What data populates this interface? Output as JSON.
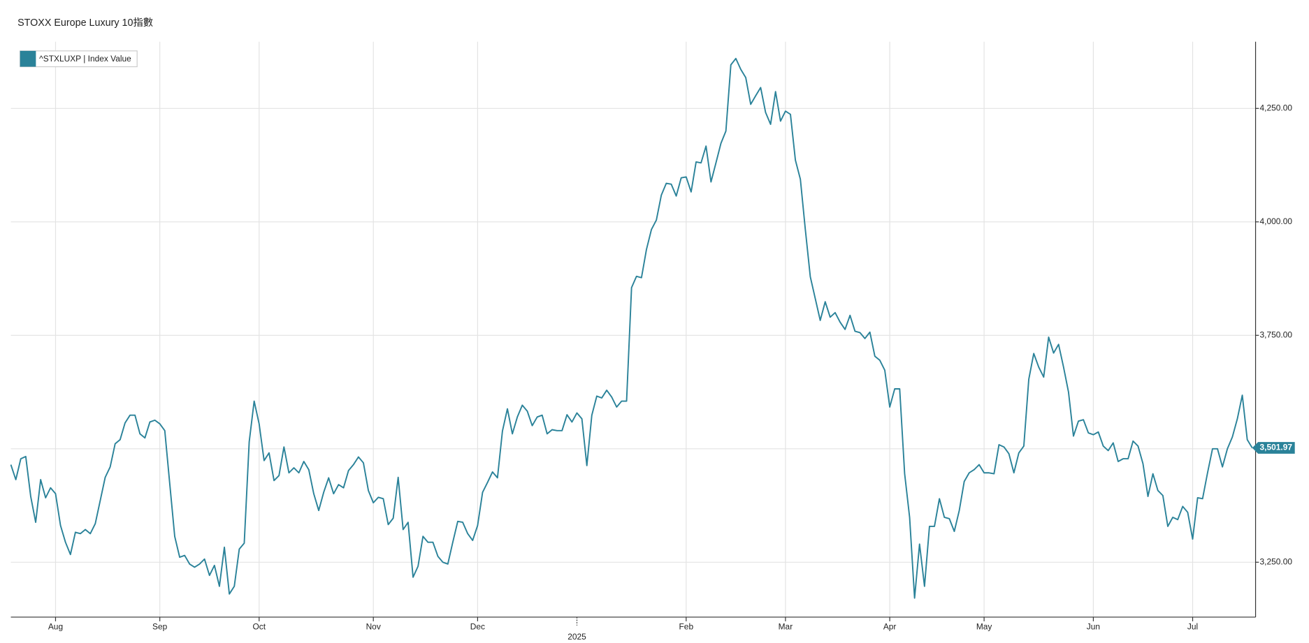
{
  "chart_data": {
    "type": "line",
    "title": "STOXX Europe Luxury 10指數",
    "legend": "top-left",
    "grid": true,
    "y_axis_side": "right",
    "ylim": [
      3129,
      4397
    ],
    "yticks": [
      {
        "value": 3250,
        "label": "3,250.00"
      },
      {
        "value": 3500,
        "label": "3,500.00"
      },
      {
        "value": 3750,
        "label": "3,750.00"
      },
      {
        "value": 4000,
        "label": "4,000.00"
      },
      {
        "value": 4250,
        "label": "4,250.00"
      }
    ],
    "categories": [
      null,
      null,
      null,
      null,
      null,
      null,
      null,
      null,
      null,
      "Aug",
      null,
      null,
      null,
      null,
      null,
      null,
      null,
      null,
      null,
      null,
      null,
      null,
      null,
      null,
      null,
      null,
      null,
      null,
      null,
      null,
      "Sep",
      null,
      null,
      null,
      null,
      null,
      null,
      null,
      null,
      null,
      null,
      null,
      null,
      null,
      null,
      null,
      null,
      null,
      null,
      null,
      "Oct",
      null,
      null,
      null,
      null,
      null,
      null,
      null,
      null,
      null,
      null,
      null,
      null,
      null,
      null,
      null,
      null,
      null,
      null,
      null,
      null,
      null,
      null,
      "Nov",
      null,
      null,
      null,
      null,
      null,
      null,
      null,
      null,
      null,
      null,
      null,
      null,
      null,
      null,
      null,
      null,
      null,
      null,
      null,
      null,
      "Dec",
      null,
      null,
      null,
      null,
      null,
      null,
      null,
      null,
      null,
      null,
      null,
      null,
      null,
      null,
      null,
      null,
      null,
      null,
      null,
      "2025",
      null,
      null,
      null,
      null,
      null,
      null,
      null,
      null,
      null,
      null,
      null,
      null,
      null,
      null,
      null,
      null,
      null,
      null,
      null,
      null,
      null,
      "Feb",
      null,
      null,
      null,
      null,
      null,
      null,
      null,
      null,
      null,
      null,
      null,
      null,
      null,
      null,
      null,
      null,
      null,
      null,
      null,
      "Mar",
      null,
      null,
      null,
      null,
      null,
      null,
      null,
      null,
      null,
      null,
      null,
      null,
      null,
      null,
      null,
      null,
      null,
      null,
      null,
      null,
      "Apr",
      null,
      null,
      null,
      null,
      null,
      null,
      null,
      null,
      null,
      null,
      null,
      null,
      null,
      null,
      null,
      null,
      null,
      null,
      "May",
      null,
      null,
      null,
      null,
      null,
      null,
      null,
      null,
      null,
      null,
      null,
      null,
      null,
      null,
      null,
      null,
      null,
      null,
      null,
      null,
      null,
      "Jun",
      null,
      null,
      null,
      null,
      null,
      null,
      null,
      null,
      null,
      null,
      null,
      null,
      null,
      null,
      null,
      null,
      null,
      null,
      null,
      "Jul",
      null,
      null,
      null,
      null,
      null,
      null,
      null,
      null,
      null,
      null,
      null,
      null
    ],
    "series": [
      {
        "name": "^STXLUXP | Index Value",
        "color": "#2a8299",
        "values": [
          3465,
          3432,
          3478,
          3483,
          3395,
          3338,
          3432,
          3392,
          3414,
          3401,
          3331,
          3294,
          3267,
          3316,
          3313,
          3322,
          3313,
          3335,
          3386,
          3437,
          3460,
          3511,
          3520,
          3557,
          3574,
          3574,
          3533,
          3524,
          3559,
          3563,
          3555,
          3540,
          3423,
          3307,
          3261,
          3265,
          3246,
          3239,
          3246,
          3257,
          3221,
          3243,
          3197,
          3283,
          3180,
          3197,
          3279,
          3292,
          3515,
          3605,
          3555,
          3474,
          3491,
          3430,
          3441,
          3504,
          3447,
          3458,
          3447,
          3472,
          3454,
          3401,
          3364,
          3404,
          3436,
          3401,
          3421,
          3414,
          3452,
          3465,
          3482,
          3469,
          3408,
          3381,
          3393,
          3390,
          3333,
          3347,
          3437,
          3322,
          3338,
          3217,
          3241,
          3307,
          3294,
          3294,
          3263,
          3250,
          3246,
          3294,
          3340,
          3338,
          3313,
          3298,
          3331,
          3404,
          3426,
          3449,
          3436,
          3539,
          3588,
          3533,
          3570,
          3596,
          3583,
          3551,
          3570,
          3574,
          3533,
          3542,
          3540,
          3540,
          3575,
          3559,
          3579,
          3566,
          3463,
          3574,
          3616,
          3612,
          3629,
          3614,
          3592,
          3605,
          3605,
          3855,
          3880,
          3877,
          3939,
          3983,
          4004,
          4059,
          4085,
          4083,
          4057,
          4097,
          4099,
          4066,
          4132,
          4130,
          4167,
          4088,
          4130,
          4173,
          4200,
          4346,
          4360,
          4336,
          4318,
          4259,
          4278,
          4296,
          4241,
          4215,
          4287,
          4222,
          4244,
          4237,
          4136,
          4094,
          3983,
          3879,
          3831,
          3783,
          3824,
          3790,
          3800,
          3779,
          3763,
          3794,
          3759,
          3756,
          3743,
          3757,
          3704,
          3695,
          3673,
          3592,
          3632,
          3632,
          3445,
          3349,
          3171,
          3290,
          3197,
          3329,
          3329,
          3390,
          3349,
          3346,
          3318,
          3364,
          3428,
          3447,
          3454,
          3465,
          3447,
          3447,
          3445,
          3509,
          3504,
          3489,
          3447,
          3491,
          3506,
          3653,
          3710,
          3680,
          3658,
          3746,
          3711,
          3730,
          3680,
          3625,
          3528,
          3561,
          3564,
          3535,
          3531,
          3537,
          3506,
          3496,
          3513,
          3472,
          3478,
          3478,
          3517,
          3506,
          3467,
          3395,
          3445,
          3408,
          3397,
          3329,
          3349,
          3344,
          3373,
          3360,
          3301,
          3392,
          3390,
          3447,
          3500,
          3500,
          3460,
          3500,
          3526,
          3566,
          3618,
          3520,
          3501.97
        ],
        "value_labels": [
          null,
          null,
          null,
          null,
          null,
          null,
          null,
          null,
          null,
          null,
          null,
          null,
          null,
          null,
          null,
          null,
          null,
          null,
          null,
          null,
          null,
          null,
          null,
          null,
          null,
          null,
          null,
          null,
          null,
          null,
          null,
          null,
          null,
          null,
          null,
          null,
          null,
          null,
          null,
          null,
          null,
          null,
          null,
          null,
          null,
          null,
          null,
          null,
          null,
          null,
          null,
          null,
          null,
          null,
          null,
          null,
          null,
          null,
          null,
          null,
          null,
          null,
          null,
          null,
          null,
          null,
          null,
          null,
          null,
          null,
          null,
          null,
          null,
          null,
          null,
          null,
          null,
          null,
          null,
          null,
          null,
          null,
          null,
          null,
          null,
          null,
          null,
          null,
          null,
          null,
          null,
          null,
          null,
          null,
          null,
          null,
          null,
          null,
          null,
          null,
          null,
          null,
          null,
          null,
          null,
          null,
          null,
          null,
          null,
          null,
          null,
          null,
          null,
          null,
          null,
          null,
          null,
          null,
          null,
          null,
          null,
          null,
          null,
          null,
          null,
          null,
          null,
          null,
          null,
          null,
          null,
          null,
          null,
          null,
          null,
          null,
          null,
          null,
          null,
          null,
          null,
          null,
          null,
          null,
          null,
          null,
          null,
          null,
          null,
          null,
          null,
          null,
          null,
          null,
          null,
          null,
          null,
          null,
          null,
          null,
          null,
          null,
          null,
          null,
          null,
          null,
          null,
          null,
          null,
          null,
          null,
          null,
          null,
          null,
          null,
          null,
          null,
          null,
          null,
          null,
          null,
          null,
          null,
          null,
          null,
          null,
          null,
          null,
          null,
          null,
          null,
          null,
          null,
          null,
          null,
          null,
          null,
          null,
          null,
          null,
          null,
          null,
          null,
          null,
          null,
          null,
          null,
          null,
          null,
          null,
          null,
          null,
          null,
          null,
          null,
          null,
          null,
          null,
          null,
          null,
          null,
          null,
          null,
          null,
          null,
          null,
          null,
          null,
          null,
          null,
          null,
          null,
          null,
          null,
          null,
          null,
          null,
          null,
          null,
          null,
          null,
          null,
          null,
          null,
          null,
          null,
          null,
          null,
          null,
          null,
          "3,501.97"
        ]
      }
    ]
  }
}
